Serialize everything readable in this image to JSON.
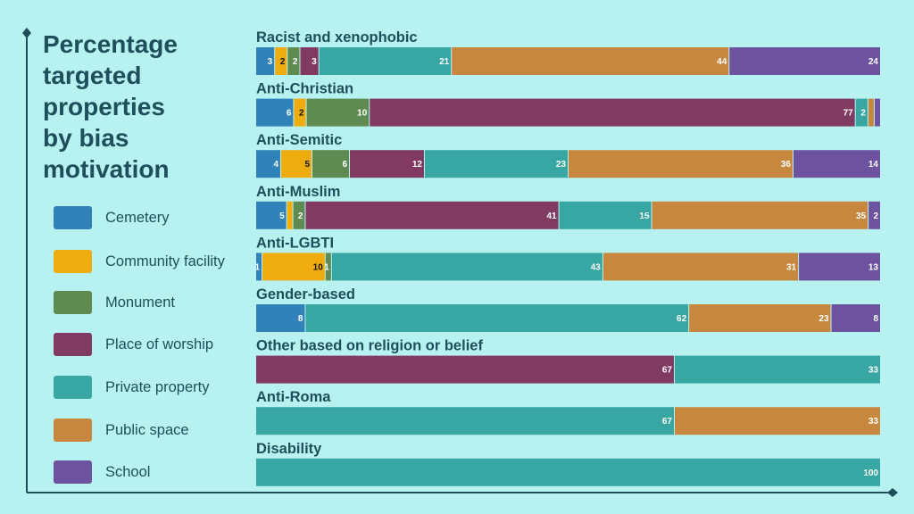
{
  "chart_data": {
    "type": "bar",
    "orientation": "horizontal-stacked",
    "title_lines": [
      "Percentage",
      "targeted",
      "properties",
      "by bias",
      "motivation"
    ],
    "legend_placement": "left",
    "grid": false,
    "xlim": [
      0,
      100
    ],
    "categories": [
      "Racist and xenophobic",
      "Anti-Christian",
      "Anti-Semitic",
      "Anti-Muslim",
      "Anti-LGBTI",
      "Gender-based",
      "Other based on religion or belief",
      "Anti-Roma",
      "Disability"
    ],
    "series": [
      {
        "name": "Cemetery",
        "color": "#3182b8",
        "label_color": "#ffffff",
        "values": [
          3,
          6,
          4,
          5,
          1,
          8,
          0,
          0,
          0
        ]
      },
      {
        "name": "Community facility",
        "color": "#eeac0f",
        "label_color": "#111111",
        "values": [
          2,
          2,
          5,
          1,
          10,
          0,
          0,
          0,
          0
        ]
      },
      {
        "name": "Monument",
        "color": "#5f8b52",
        "label_color": "#ffffff",
        "values": [
          2,
          10,
          6,
          2,
          1,
          0,
          0,
          0,
          0
        ]
      },
      {
        "name": "Place of worship",
        "color": "#813b63",
        "label_color": "#ffffff",
        "values": [
          3,
          77,
          12,
          41,
          0,
          0,
          67,
          0,
          0
        ]
      },
      {
        "name": "Private property",
        "color": "#38a7a3",
        "label_color": "#ffffff",
        "values": [
          21,
          2,
          23,
          15,
          43,
          62,
          33,
          67,
          100
        ]
      },
      {
        "name": "Public space",
        "color": "#c8873f",
        "label_color": "#ffffff",
        "values": [
          44,
          1,
          36,
          35,
          31,
          23,
          0,
          33,
          0
        ]
      },
      {
        "name": "School",
        "color": "#6d52a0",
        "label_color": "#ffffff",
        "values": [
          24,
          1,
          14,
          2,
          13,
          8,
          0,
          0,
          0
        ]
      }
    ],
    "hidden_labels": {
      "Anti-Christian": [
        "Public space",
        "School"
      ],
      "Anti-Muslim": [
        "Community facility"
      ]
    }
  }
}
